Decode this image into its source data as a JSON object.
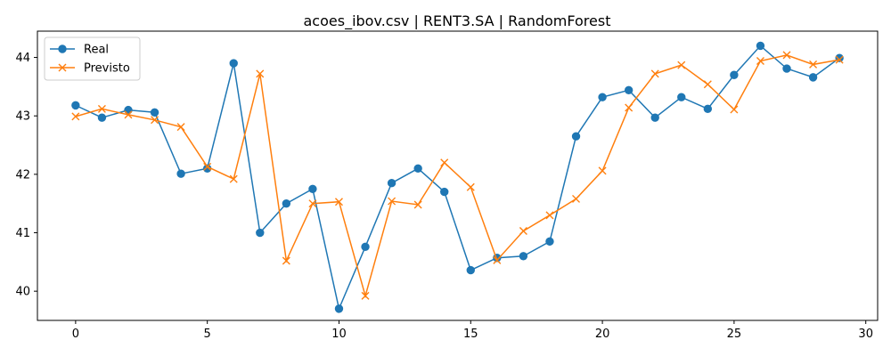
{
  "chart_data": {
    "type": "line",
    "title": "acoes_ibov.csv | RENT3.SA | RandomForest",
    "xlabel": "",
    "ylabel": "",
    "xlim": [
      -1.45,
      30.45
    ],
    "ylim": [
      39.5,
      44.45
    ],
    "xticks": [
      0,
      5,
      10,
      15,
      20,
      25,
      30
    ],
    "yticks": [
      40,
      41,
      42,
      43,
      44
    ],
    "grid": false,
    "legend_position": "top-left",
    "x": [
      0,
      1,
      2,
      3,
      4,
      5,
      6,
      7,
      8,
      9,
      10,
      11,
      12,
      13,
      14,
      15,
      16,
      17,
      18,
      19,
      20,
      21,
      22,
      23,
      24,
      25,
      26,
      27,
      28,
      29
    ],
    "series": [
      {
        "name": "Real",
        "marker": "circle",
        "color": "#1f77b4",
        "values": [
          43.18,
          42.97,
          43.1,
          43.06,
          42.01,
          42.1,
          43.9,
          41.0,
          41.5,
          41.75,
          39.7,
          40.76,
          41.85,
          42.1,
          41.7,
          40.36,
          40.57,
          40.6,
          40.85,
          42.65,
          43.32,
          43.44,
          42.97,
          43.32,
          43.12,
          43.7,
          44.2,
          43.81,
          43.66,
          43.99
        ]
      },
      {
        "name": "Previsto",
        "marker": "x",
        "color": "#ff7f0e",
        "values": [
          42.99,
          43.12,
          43.02,
          42.93,
          42.81,
          42.13,
          41.92,
          43.72,
          40.52,
          41.5,
          41.53,
          39.92,
          41.54,
          41.48,
          42.2,
          41.78,
          40.53,
          41.03,
          41.3,
          41.58,
          42.06,
          43.14,
          43.72,
          43.87,
          43.54,
          43.11,
          43.94,
          44.04,
          43.88,
          43.96
        ]
      }
    ]
  }
}
